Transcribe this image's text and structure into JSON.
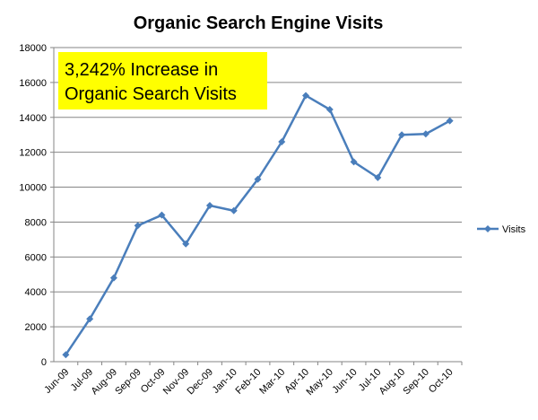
{
  "chart_data": {
    "type": "line",
    "title": "Organic Search Engine Visits",
    "annotation": [
      "3,242% Increase in",
      "Organic Search Visits"
    ],
    "categories": [
      "Jun-09",
      "Jul-09",
      "Aug-09",
      "Sep-09",
      "Oct-09",
      "Nov-09",
      "Dec-09",
      "Jan-10",
      "Feb-10",
      "Mar-10",
      "Apr-10",
      "May-10",
      "Jun-10",
      "Jul-10",
      "Aug-10",
      "Sep-10",
      "Oct-10"
    ],
    "series": [
      {
        "name": "Visits",
        "color": "#4a7ebb",
        "values": [
          400,
          2450,
          4800,
          7800,
          8400,
          6750,
          8950,
          8650,
          10450,
          12600,
          15250,
          14450,
          11450,
          10550,
          13000,
          13050,
          13800
        ]
      }
    ],
    "ylim": [
      0,
      18000
    ],
    "yticks": [
      0,
      2000,
      4000,
      6000,
      8000,
      10000,
      12000,
      14000,
      16000,
      18000
    ],
    "grid": true,
    "legend": "right"
  }
}
